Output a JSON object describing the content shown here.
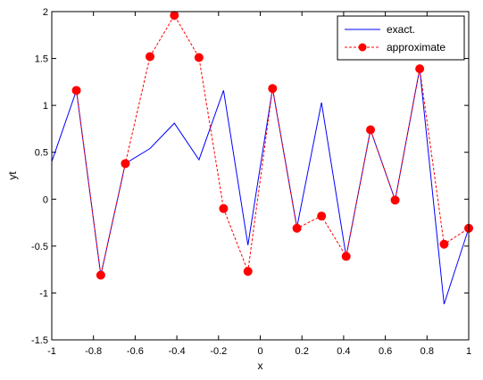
{
  "chart_data": {
    "type": "line",
    "xlabel": "x",
    "ylabel": "yt",
    "xlim": [
      -1,
      1
    ],
    "ylim": [
      -1.5,
      2
    ],
    "xticks": [
      "-1",
      "-0.8",
      "-0.6",
      "-0.4",
      "-0.2",
      "0",
      "0.2",
      "0.4",
      "0.6",
      "0.8",
      "1"
    ],
    "yticks": [
      "-1.5",
      "-1",
      "-0.5",
      "0",
      "0.5",
      "1",
      "1.5",
      "2"
    ],
    "legend_position": "top-right",
    "grid": false,
    "series": [
      {
        "name": "exact.",
        "style": "solid",
        "marker": "none",
        "color": "#0000ff",
        "x": [
          -1,
          -0.882,
          -0.765,
          -0.647,
          -0.529,
          -0.412,
          -0.294,
          -0.176,
          -0.059,
          0.059,
          0.176,
          0.294,
          0.412,
          0.529,
          0.647,
          0.765,
          0.882,
          1
        ],
        "y": [
          0.4,
          1.16,
          -0.81,
          0.38,
          0.54,
          0.81,
          0.42,
          1.16,
          -0.49,
          1.18,
          -0.3,
          1.03,
          -0.61,
          0.74,
          -0.01,
          1.39,
          -1.12,
          -0.31
        ]
      },
      {
        "name": "approximate",
        "style": "dashed",
        "marker": "circle",
        "color": "#ff0000",
        "x": [
          -0.882,
          -0.765,
          -0.647,
          -0.529,
          -0.412,
          -0.294,
          -0.176,
          -0.059,
          0.059,
          0.176,
          0.294,
          0.412,
          0.529,
          0.647,
          0.765,
          0.882,
          1
        ],
        "y": [
          1.16,
          -0.81,
          0.38,
          1.52,
          1.96,
          1.51,
          -0.1,
          -0.77,
          1.18,
          -0.31,
          -0.18,
          -0.61,
          0.74,
          -0.01,
          1.39,
          -0.48,
          -0.31
        ]
      }
    ]
  }
}
